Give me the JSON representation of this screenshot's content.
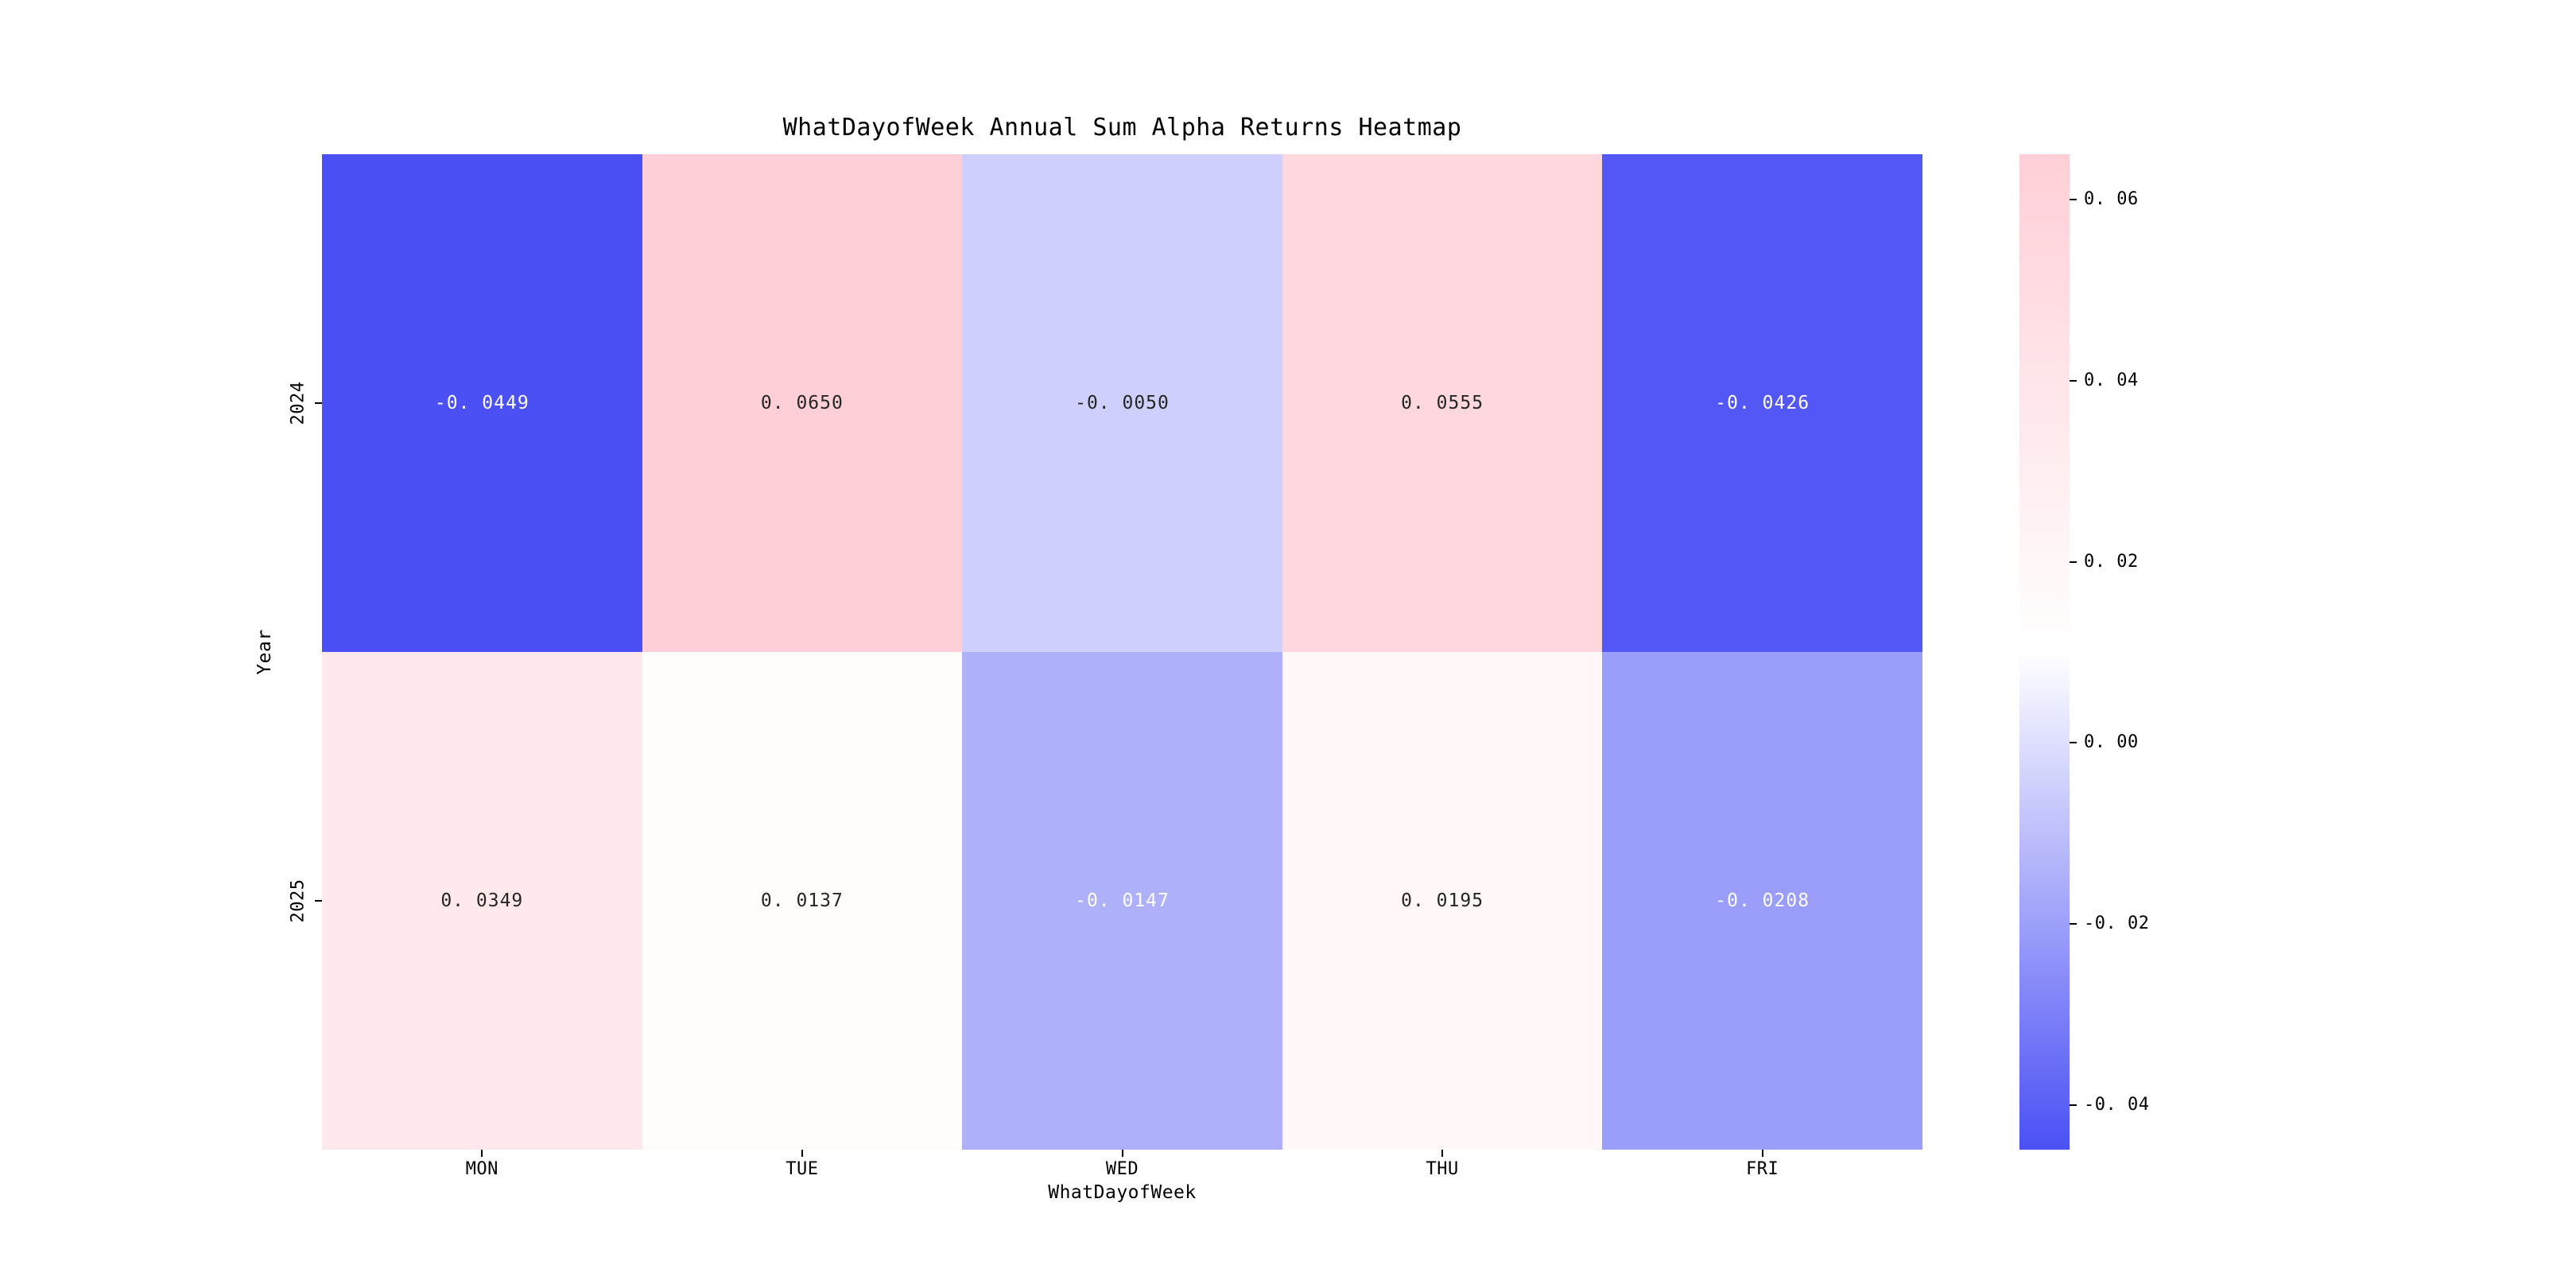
{
  "title": "WhatDayofWeek Annual Sum Alpha Returns Heatmap",
  "colors": {
    "background": "#ffffff",
    "colormap_max_pink": "#ffcfd7",
    "colormap_mid_white": "#ffffff",
    "colormap_min_blue": "#4b50f5",
    "annotation_dark": "#262626",
    "annotation_light": "#ffffff",
    "axis_text": "#000000"
  },
  "chart_data": {
    "type": "heatmap",
    "title": "WhatDayofWeek Annual Sum Alpha Returns Heatmap",
    "xlabel": "WhatDayofWeek",
    "ylabel": "Year",
    "columns": [
      "MON",
      "TUE",
      "WED",
      "THU",
      "FRI"
    ],
    "rows": [
      "2024",
      "2025"
    ],
    "values": [
      [
        -0.0449,
        0.065,
        -0.005,
        0.0555,
        -0.0426
      ],
      [
        0.0349,
        0.0137,
        -0.0147,
        0.0195,
        -0.0208
      ]
    ],
    "cell_labels": [
      [
        "-0.0449",
        "0.0650",
        "-0.0050",
        "0.0555",
        "-0.0426"
      ],
      [
        "0.0349",
        "0.0137",
        "-0.0147",
        "0.0195",
        "-0.0208"
      ]
    ],
    "vmin": -0.0449,
    "vmax": 0.065,
    "colorbar_tick_labels": [
      "0.06",
      "0.04",
      "0.02",
      "0.00",
      "-0.02",
      "-0.04"
    ],
    "colorbar_tick_values": [
      0.06,
      0.04,
      0.02,
      0.0,
      -0.02,
      -0.04
    ],
    "colormap": "diverging pink-white-blue, white at midpoint of range",
    "colorbar_position": "right",
    "grid": false
  }
}
